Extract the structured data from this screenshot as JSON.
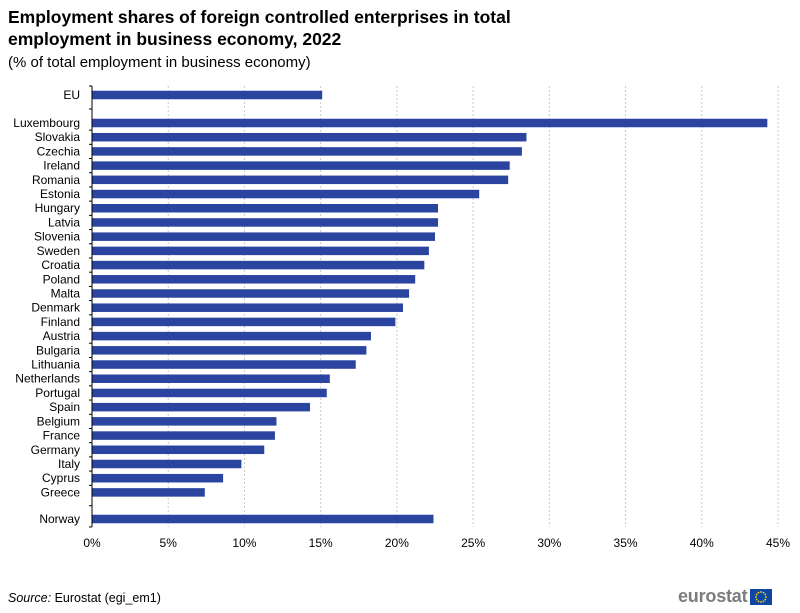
{
  "chart_data": {
    "type": "bar",
    "orientation": "horizontal",
    "title": "Employment shares of foreign controlled enterprises in total employment in business economy, 2022",
    "subtitle": "(% of total employment  in business economy)",
    "categories": [
      "EU",
      "Luxembourg",
      "Slovakia",
      "Czechia",
      "Ireland",
      "Romania",
      "Estonia",
      "Hungary",
      "Latvia",
      "Slovenia",
      "Sweden",
      "Croatia",
      "Poland",
      "Malta",
      "Denmark",
      "Finland",
      "Austria",
      "Bulgaria",
      "Lithuania",
      "Netherlands",
      "Portugal",
      "Spain",
      "Belgium",
      "France",
      "Germany",
      "Italy",
      "Cyprus",
      "Greece",
      "Norway"
    ],
    "values": [
      15.1,
      44.3,
      28.5,
      28.2,
      27.4,
      27.3,
      25.4,
      22.7,
      22.7,
      22.5,
      22.1,
      21.8,
      21.2,
      20.8,
      20.4,
      19.9,
      18.3,
      18.0,
      17.3,
      15.6,
      15.4,
      14.3,
      12.1,
      12.0,
      11.3,
      9.8,
      8.6,
      7.4,
      22.4
    ],
    "xlim": [
      0,
      45
    ],
    "xticks": [
      0,
      5,
      10,
      15,
      20,
      25,
      30,
      35,
      40,
      45
    ],
    "tick_suffix": "%",
    "grid": "vertical dashed",
    "bar_color": "#2a44a0",
    "legend": "none"
  },
  "footer": {
    "source_label": "Source:",
    "source_text": "Eurostat (egi_em1)",
    "logo_text": "eurostat"
  },
  "colors": {
    "bar": "#2a44a0",
    "grid": "#c8c8c8",
    "logo_text": "#7d7d7d",
    "eu_flag": "#0e47a1",
    "eu_stars": "#ffd617"
  }
}
